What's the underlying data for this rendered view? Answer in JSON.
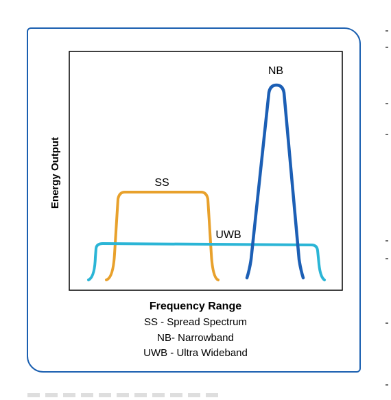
{
  "diagram": {
    "y_axis_label": "Energy Output",
    "x_axis_title": "Frequency Range",
    "legend_lines": [
      "SS - Spread Spectrum",
      "NB- Narrowband",
      "UWB - Ultra Wideband"
    ],
    "curves": [
      {
        "id": "ss",
        "label": "SS",
        "color": "#e8a12c"
      },
      {
        "id": "uwb",
        "label": "UWB",
        "color": "#2bb5d6"
      },
      {
        "id": "nb",
        "label": "NB",
        "color": "#1c5fb5"
      }
    ],
    "frame_color": "#1a5fb0"
  }
}
